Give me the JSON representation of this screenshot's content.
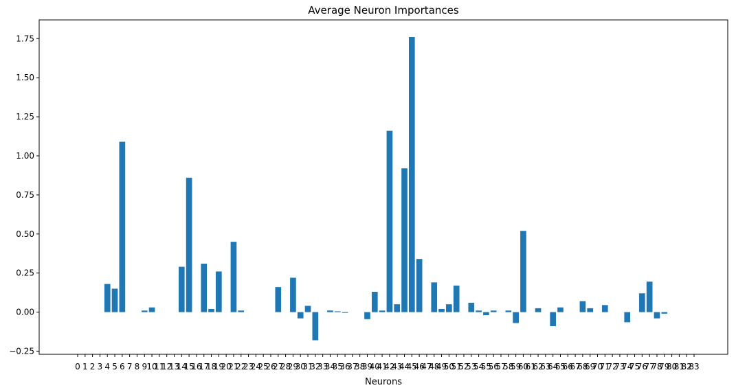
{
  "chart_data": {
    "type": "bar",
    "title": "Average Neuron Importances",
    "xlabel": "Neurons",
    "ylabel": "",
    "ylim": [
      -0.27,
      1.87
    ],
    "yticks": [
      -0.25,
      0.0,
      0.25,
      0.5,
      0.75,
      1.0,
      1.25,
      1.5,
      1.75
    ],
    "ytick_labels": [
      "−0.25",
      "0.00",
      "0.25",
      "0.50",
      "0.75",
      "1.00",
      "1.25",
      "1.50",
      "1.75"
    ],
    "bar_color": "#1f77b4",
    "grid": false,
    "categories": [
      "0",
      "1",
      "2",
      "3",
      "4",
      "5",
      "6",
      "7",
      "8",
      "9",
      "10",
      "11",
      "12",
      "13",
      "14",
      "15",
      "16",
      "17",
      "18",
      "19",
      "20",
      "21",
      "22",
      "23",
      "24",
      "25",
      "26",
      "27",
      "28",
      "29",
      "30",
      "31",
      "32",
      "33",
      "34",
      "35",
      "36",
      "37",
      "38",
      "39",
      "40",
      "41",
      "42",
      "43",
      "44",
      "45",
      "46",
      "47",
      "48",
      "49",
      "50",
      "51",
      "52",
      "53",
      "54",
      "55",
      "56",
      "57",
      "58",
      "59",
      "60",
      "61",
      "62",
      "63",
      "64",
      "65",
      "66",
      "67",
      "68",
      "69",
      "70",
      "71",
      "72",
      "73",
      "74",
      "75",
      "76",
      "77",
      "78",
      "79",
      "80",
      "81",
      "82",
      "83"
    ],
    "values": [
      0,
      0,
      0,
      0,
      0.18,
      0.15,
      1.09,
      0,
      0,
      0.01,
      0.03,
      0,
      0,
      0,
      0.29,
      0.86,
      0,
      0.31,
      0.02,
      0.26,
      0,
      0.45,
      0.01,
      0,
      0,
      0,
      0,
      0.16,
      0,
      0.22,
      -0.04,
      0.04,
      -0.18,
      0,
      0.01,
      0.005,
      -0.005,
      0,
      0,
      -0.045,
      0.13,
      0.01,
      1.16,
      0.05,
      0.92,
      1.76,
      0.34,
      0,
      0.19,
      0.02,
      0.05,
      0.17,
      0,
      0.06,
      0.01,
      -0.02,
      0.01,
      0,
      0.01,
      -0.07,
      0.52,
      0,
      0.025,
      0,
      -0.09,
      0.03,
      0,
      0,
      0.07,
      0.025,
      0,
      0.045,
      0,
      0,
      -0.065,
      0,
      0.12,
      0.195,
      -0.04,
      -0.01,
      0,
      0,
      0,
      0
    ]
  }
}
